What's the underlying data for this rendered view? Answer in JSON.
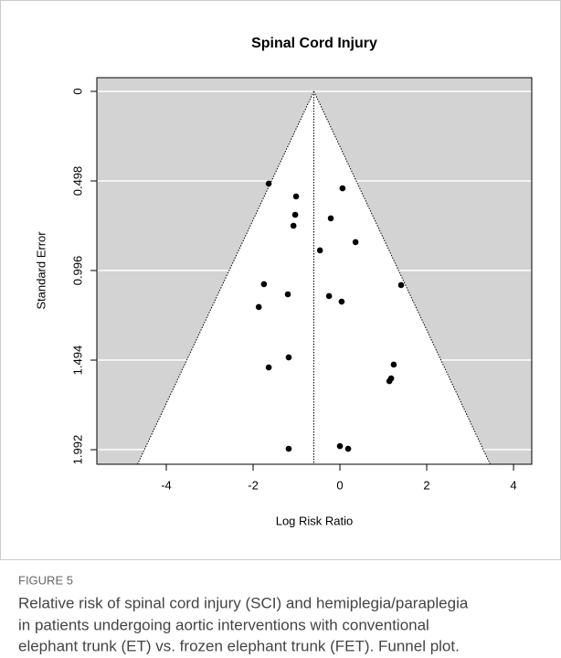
{
  "chart_data": {
    "type": "funnel",
    "title": "Spinal Cord Injury",
    "xlabel": "Log Risk Ratio",
    "ylabel": "Standard Error",
    "summary_estimate": -0.6,
    "x": [
      -1.64,
      0.06,
      -1.01,
      -0.21,
      -1.03,
      -1.07,
      0.36,
      -0.46,
      -1.75,
      1.41,
      -1.2,
      -0.25,
      0.04,
      -1.87,
      -1.18,
      1.24,
      -1.64,
      1.18,
      1.14,
      -1.18,
      0.0,
      0.19
    ],
    "values": [
      0.513,
      0.539,
      0.584,
      0.706,
      0.686,
      0.747,
      0.838,
      0.884,
      1.072,
      1.077,
      1.128,
      1.138,
      1.169,
      1.199,
      1.479,
      1.519,
      1.535,
      1.596,
      1.611,
      1.987,
      1.972,
      1.987
    ],
    "color": "#000000",
    "background": "#d3d3d3",
    "xlim": [
      -5.6,
      4.42
    ],
    "xticks": [
      -4,
      -2,
      0,
      2,
      4
    ],
    "ylim": [
      2.073,
      -0.076
    ],
    "yticks": [
      0,
      0.498,
      0.996,
      1.494,
      1.992
    ],
    "grid": true
  },
  "caption": {
    "label": "FIGURE 5",
    "lines": [
      "Relative risk of spinal cord injury (SCI) and hemiplegia/paraplegia",
      "in patients undergoing aortic interventions with conventional",
      "elephant trunk (ET) vs. frozen elephant trunk (FET). Funnel plot."
    ]
  }
}
